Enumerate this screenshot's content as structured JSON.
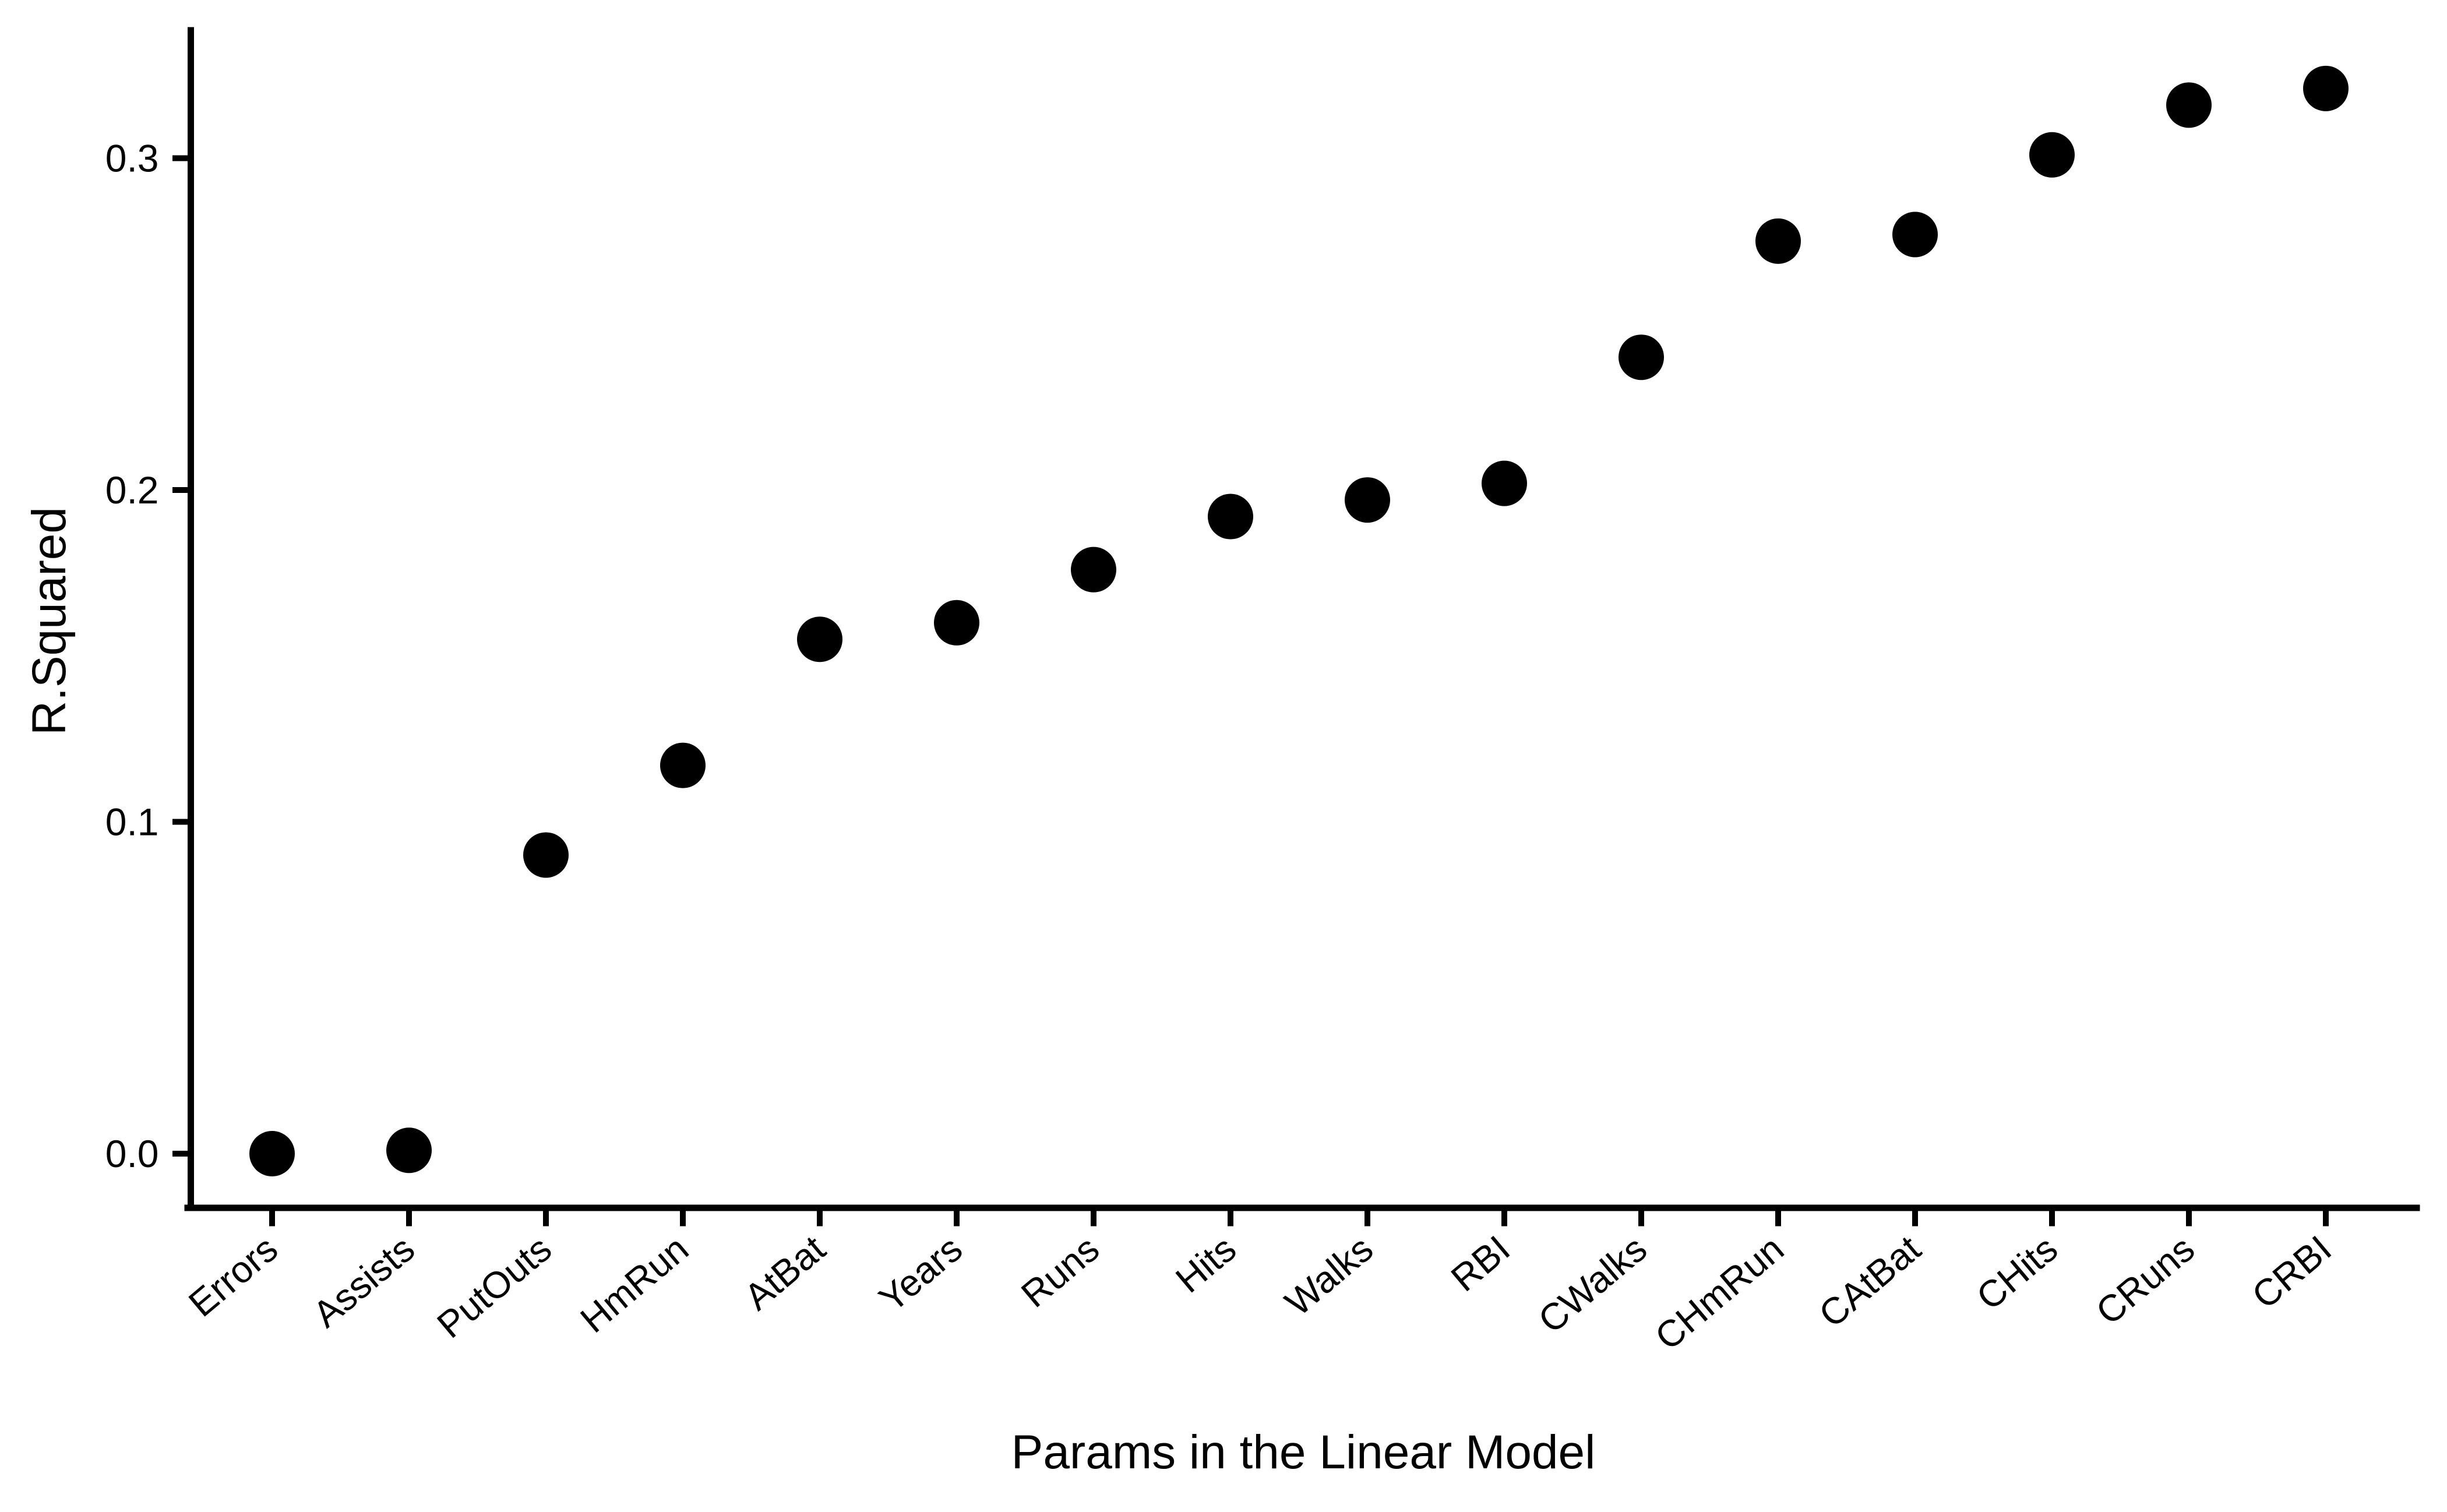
{
  "chart_data": {
    "type": "scatter",
    "title": "",
    "xlabel": "Params in the Linear Model",
    "ylabel": "R.Squared",
    "categories": [
      "Errors",
      "Assists",
      "PutOuts",
      "HmRun",
      "AtBat",
      "Years",
      "Runs",
      "Hits",
      "Walks",
      "RBI",
      "CWalks",
      "CHmRun",
      "CAtBat",
      "CHits",
      "CRuns",
      "CRBI"
    ],
    "values": [
      0.0,
      0.001,
      0.09,
      0.117,
      0.155,
      0.16,
      0.176,
      0.192,
      0.197,
      0.202,
      0.24,
      0.275,
      0.277,
      0.301,
      0.316,
      0.321
    ],
    "yticks": [
      0.0,
      0.1,
      0.2,
      0.3
    ],
    "ytick_labels": [
      "0.0",
      "0.1",
      "0.2",
      "0.3"
    ],
    "ylim": [
      -0.016,
      0.338
    ],
    "grid": false,
    "legend": "none",
    "point_color": "#000000",
    "axis_color": "#000000",
    "background_color": "#FFFFFF",
    "x_label_angle_deg": -40
  }
}
